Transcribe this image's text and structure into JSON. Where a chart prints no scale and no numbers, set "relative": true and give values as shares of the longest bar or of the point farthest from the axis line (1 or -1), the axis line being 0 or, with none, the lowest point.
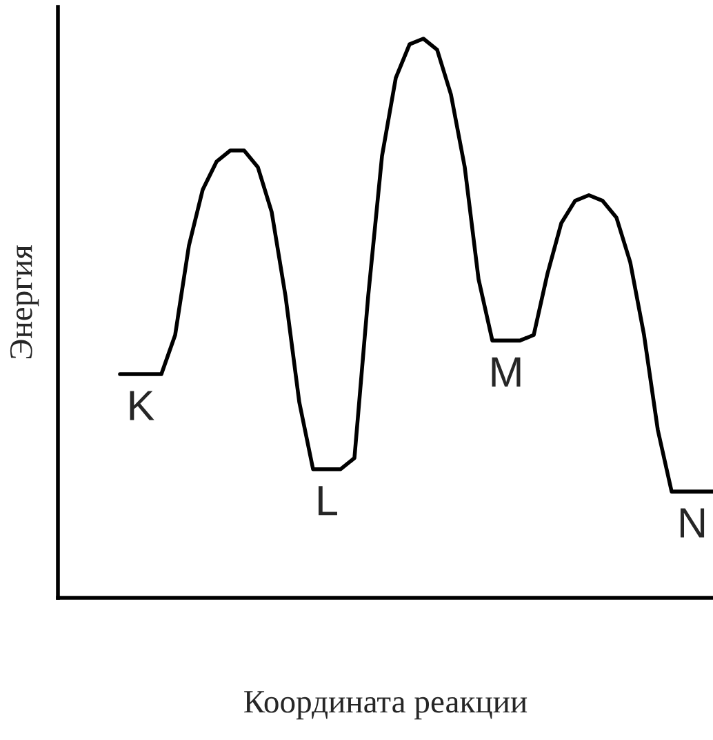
{
  "chart_data": {
    "type": "line",
    "relative": true,
    "xlabel": "Координата реакции",
    "ylabel": "Энергия",
    "color": "#000000",
    "legend": false,
    "marker": "none",
    "line_style": "solid",
    "categories": [
      null,
      null,
      null,
      null,
      null,
      null,
      null,
      null,
      null,
      null,
      null,
      null,
      null,
      null,
      null,
      null,
      null,
      null,
      null,
      null,
      null,
      null,
      null,
      null,
      null,
      null,
      null,
      null,
      null,
      null,
      null,
      null,
      null,
      null,
      null,
      null,
      null,
      null,
      null,
      null,
      null,
      null,
      null,
      null
    ],
    "values": [
      0.4,
      0.4,
      0.4,
      0.4,
      0.47,
      0.63,
      0.73,
      0.78,
      0.8,
      0.8,
      0.77,
      0.69,
      0.54,
      0.35,
      0.23,
      0.23,
      0.23,
      0.25,
      0.54,
      0.79,
      0.93,
      0.99,
      1.0,
      0.98,
      0.9,
      0.77,
      0.57,
      0.46,
      0.46,
      0.46,
      0.47,
      0.58,
      0.67,
      0.71,
      0.72,
      0.71,
      0.68,
      0.6,
      0.47,
      0.3,
      0.19,
      0.19,
      0.19,
      0.19
    ],
    "annotations": [
      {
        "text": "K",
        "y": 0.4
      },
      {
        "text": "L",
        "y": 0.23
      },
      {
        "text": "M",
        "y": 0.46
      },
      {
        "text": "N",
        "y": 0.19
      }
    ]
  }
}
